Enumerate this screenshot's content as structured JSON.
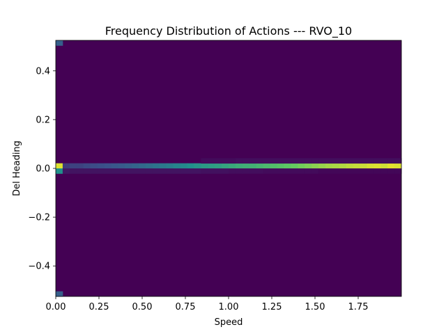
{
  "chart_data": {
    "type": "heatmap",
    "title": "Frequency Distribution of Actions --- RVO_10",
    "xlabel": "Speed",
    "ylabel": "Del Heading",
    "xlim": [
      0.0,
      2.0
    ],
    "ylim": [
      -0.525,
      0.525
    ],
    "x_ticks": [
      0.0,
      0.25,
      0.5,
      0.75,
      1.0,
      1.25,
      1.5,
      1.75
    ],
    "x_tick_labels": [
      "0.00",
      "0.25",
      "0.50",
      "0.75",
      "1.00",
      "1.25",
      "1.50",
      "1.75"
    ],
    "y_ticks": [
      -0.4,
      -0.2,
      0.0,
      0.2,
      0.4
    ],
    "y_tick_labels": [
      "−0.4",
      "−0.2",
      "0.0",
      "0.2",
      "0.4"
    ],
    "colormap": "viridis",
    "bins": {
      "x": 50,
      "y": 50
    },
    "row_values": {
      "y_center_row": [
        0.95,
        0.18,
        0.2,
        0.2,
        0.22,
        0.23,
        0.24,
        0.25,
        0.27,
        0.28,
        0.3,
        0.32,
        0.34,
        0.36,
        0.38,
        0.4,
        0.42,
        0.45,
        0.47,
        0.5,
        0.52,
        0.54,
        0.55,
        0.56,
        0.58,
        0.6,
        0.62,
        0.63,
        0.64,
        0.66,
        0.68,
        0.7,
        0.72,
        0.74,
        0.76,
        0.78,
        0.8,
        0.82,
        0.84,
        0.86,
        0.87,
        0.88,
        0.9,
        0.91,
        0.92,
        0.94,
        0.95,
        0.93,
        0.96,
        0.95
      ],
      "y_below_row": [
        0.5,
        0.07,
        0.06,
        0.06,
        0.06,
        0.06,
        0.06,
        0.06,
        0.06,
        0.06,
        0.06,
        0.06,
        0.06,
        0.06,
        0.06,
        0.06,
        0.06,
        0.06,
        0.06,
        0.06,
        0.06,
        0.05,
        0.05,
        0.05,
        0.05,
        0.04,
        0.04,
        0.04,
        0.04,
        0.04,
        0.03,
        0.03,
        0.03,
        0.03,
        0.03,
        0.03,
        0.03,
        0.03,
        0.02,
        0.02,
        0.02,
        0.02,
        0.02,
        0.02,
        0.02,
        0.02,
        0.02,
        0.02,
        0.02,
        0.02
      ],
      "y_above_row": [
        0.0,
        0.0,
        0.0,
        0.0,
        0.0,
        0.0,
        0.0,
        0.0,
        0.0,
        0.0,
        0.0,
        0.0,
        0.0,
        0.0,
        0.0,
        0.0,
        0.0,
        0.0,
        0.0,
        0.0,
        0.0,
        0.03,
        0.03,
        0.03,
        0.03,
        0.03,
        0.04,
        0.04,
        0.04,
        0.04,
        0.04,
        0.04,
        0.04,
        0.04,
        0.04,
        0.04,
        0.04,
        0.04,
        0.04,
        0.04,
        0.04,
        0.04,
        0.04,
        0.04,
        0.04,
        0.04,
        0.04,
        0.04,
        0.04,
        0.04
      ],
      "corner_top_left": 0.3,
      "corner_bottom_left": 0.3
    }
  }
}
